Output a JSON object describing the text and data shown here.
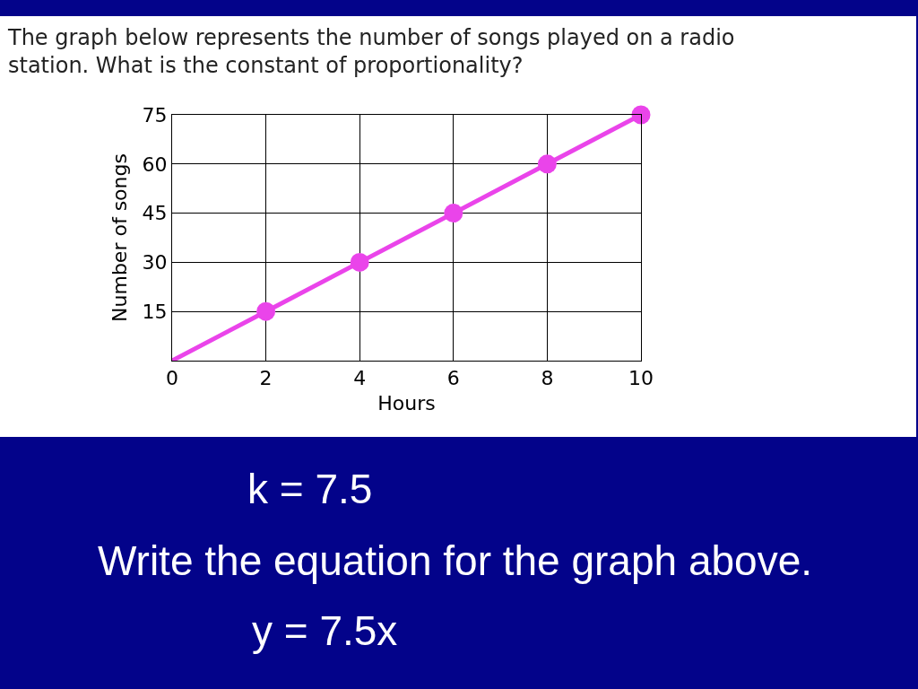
{
  "chart_data": {
    "type": "line",
    "title": "The graph below represents the number of songs played on a radio station. What is the constant of proportionality?",
    "xlabel": "Hours",
    "ylabel": "Number of songs",
    "series": [
      {
        "color": "#ea44ea",
        "marker": "none",
        "x": [
          0,
          2,
          4,
          6,
          8,
          10
        ],
        "values": [
          0,
          15,
          30,
          45,
          60,
          75
        ]
      },
      {
        "type": "scatter",
        "color": "#ea44ea",
        "marker": "circle",
        "x": [
          2,
          4,
          6,
          8,
          10
        ],
        "values": [
          15,
          30,
          45,
          60,
          75
        ]
      }
    ],
    "xlim": [
      0,
      10
    ],
    "xticks": [
      0,
      2,
      4,
      6,
      8,
      10
    ],
    "ylim": [
      0,
      75
    ],
    "yticks": [
      15,
      30,
      45,
      60,
      75
    ],
    "grid": true,
    "legend": false,
    "annotations": [
      "k = 7.5",
      "Write the equation for the graph above.",
      "y = 7.5x"
    ]
  }
}
